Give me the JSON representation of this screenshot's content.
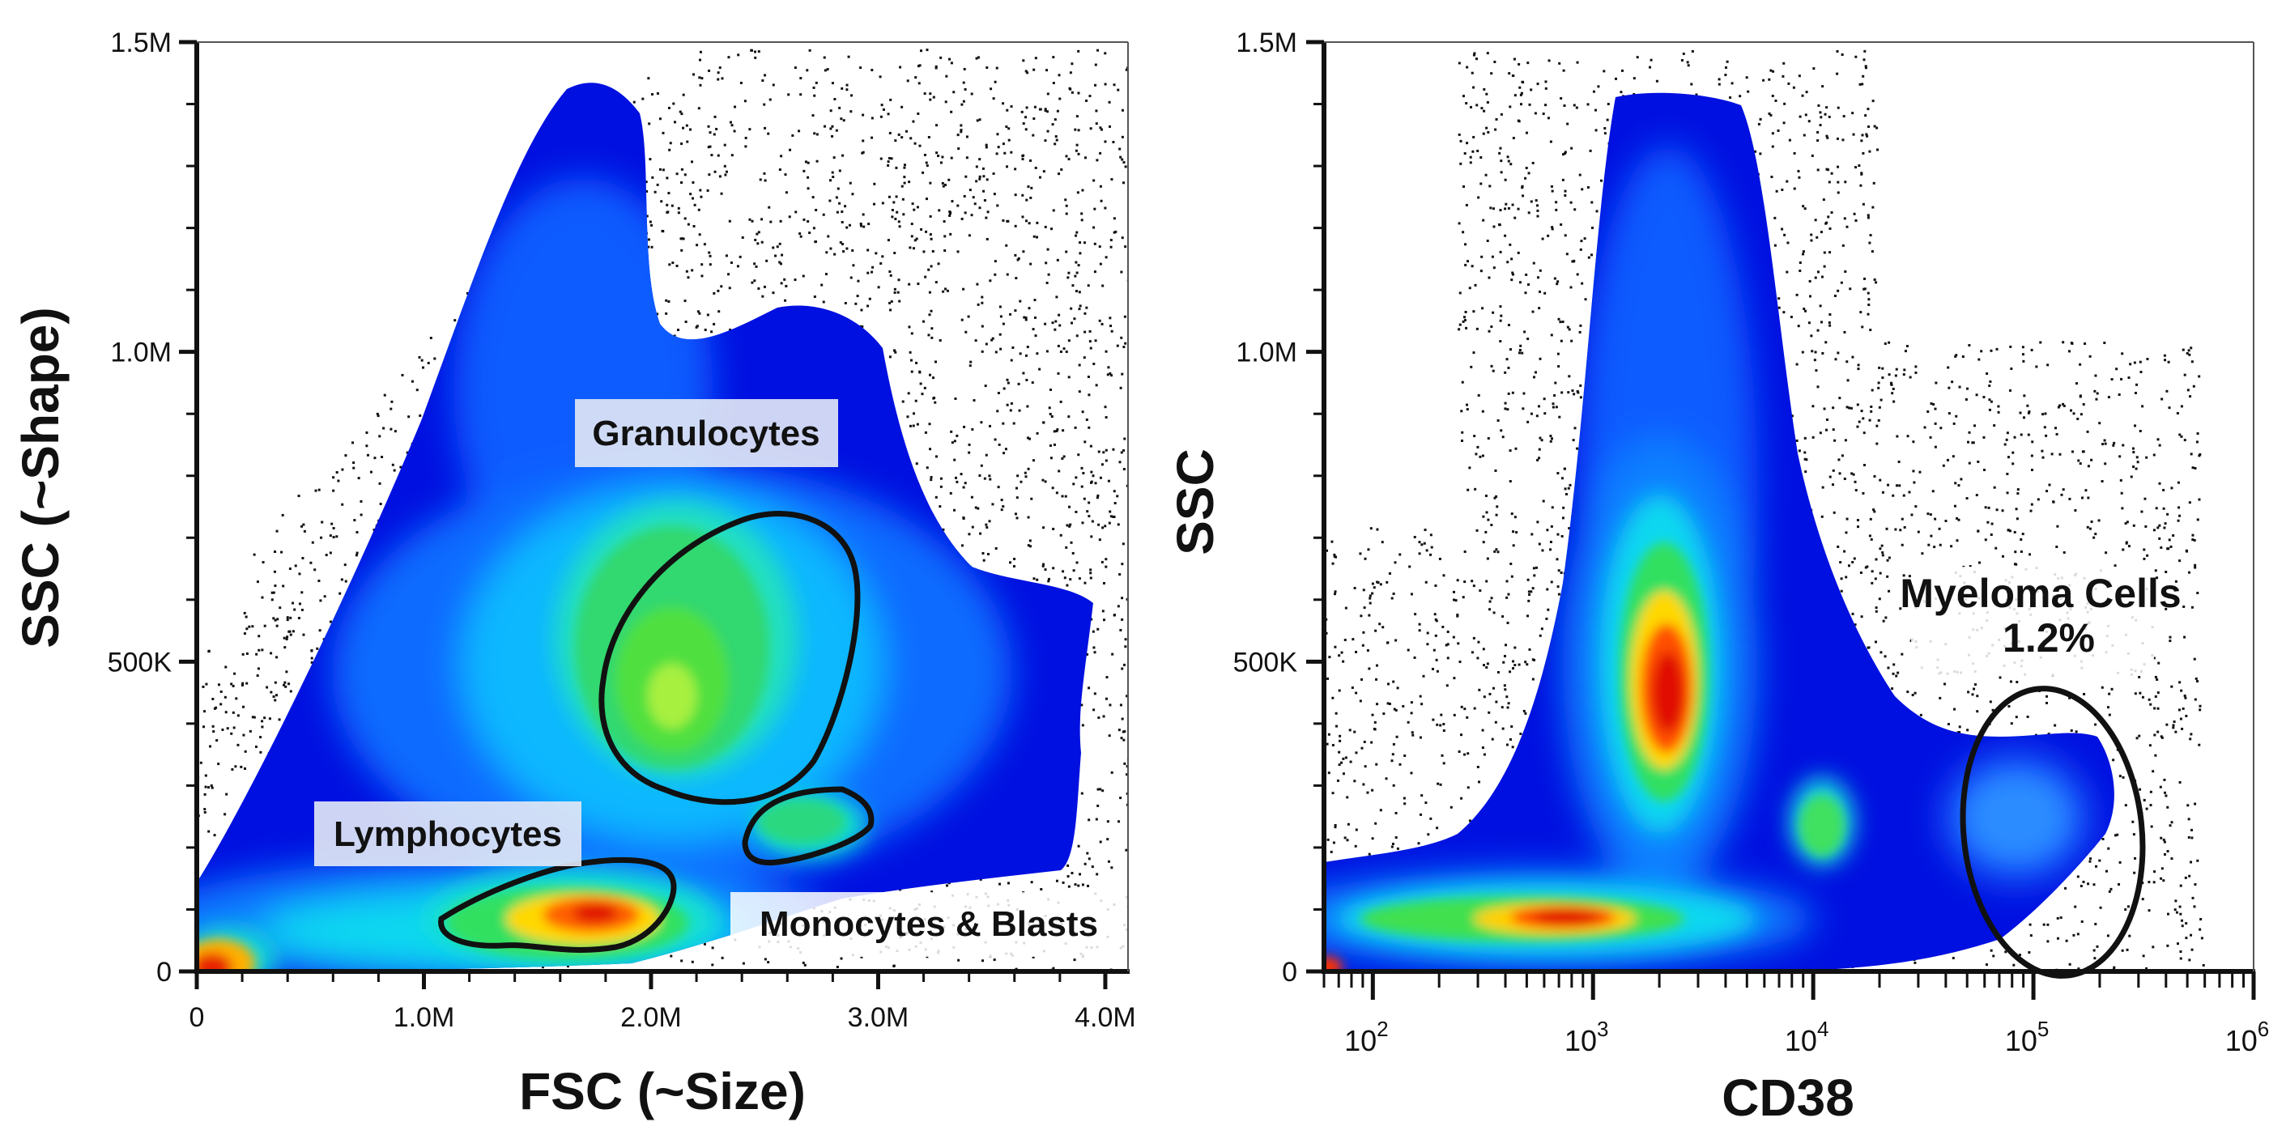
{
  "chart_data": [
    {
      "type": "scatter",
      "subtype": "density-pseudocolor",
      "xlabel": "FSC (~Size)",
      "ylabel": "SSC (~Shape)",
      "xlim": [
        0,
        4100000
      ],
      "ylim": [
        0,
        1500000
      ],
      "x_ticks": [
        {
          "value": 0,
          "label": "0"
        },
        {
          "value": 1000000,
          "label": "1.0M"
        },
        {
          "value": 2000000,
          "label": "2.0M"
        },
        {
          "value": 3000000,
          "label": "3.0M"
        },
        {
          "value": 4000000,
          "label": "4.0M"
        }
      ],
      "y_ticks": [
        {
          "value": 0,
          "label": "0"
        },
        {
          "value": 500000,
          "label": "500K"
        },
        {
          "value": 1000000,
          "label": "1.0M"
        },
        {
          "value": 1500000,
          "label": "1.5M"
        }
      ],
      "populations": [
        {
          "name": "Granulocytes",
          "center": [
            2050000,
            440000
          ],
          "peak_density": "high"
        },
        {
          "name": "Lymphocytes",
          "center": [
            1650000,
            95000
          ],
          "peak_density": "very high"
        },
        {
          "name": "Monocytes & Blasts",
          "center": [
            2500000,
            240000
          ],
          "peak_density": "medium"
        }
      ],
      "annotations": [
        "Granulocytes",
        "Lymphocytes",
        "Monocytes & Blasts"
      ],
      "colormap": [
        "#0000d8",
        "#0070ff",
        "#00e8ff",
        "#00e040",
        "#ffe000",
        "#ff4000",
        "#e00000"
      ],
      "grid": false
    },
    {
      "type": "scatter",
      "subtype": "density-pseudocolor",
      "xlabel": "CD38",
      "ylabel": "SSC",
      "x_scale": "log",
      "xlim": [
        60,
        1000000
      ],
      "ylim": [
        0,
        1500000
      ],
      "x_ticks": [
        {
          "value": 100,
          "base": "10",
          "exp": "2"
        },
        {
          "value": 1000,
          "base": "10",
          "exp": "3"
        },
        {
          "value": 10000,
          "base": "10",
          "exp": "4"
        },
        {
          "value": 100000,
          "base": "10",
          "exp": "5"
        },
        {
          "value": 1000000,
          "base": "10",
          "exp": "6"
        }
      ],
      "y_ticks": [
        {
          "value": 0,
          "label": "0"
        },
        {
          "value": 500000,
          "label": "500K"
        },
        {
          "value": 1000000,
          "label": "1.0M"
        },
        {
          "value": 1500000,
          "label": "1.5M"
        }
      ],
      "populations": [
        {
          "name": "Myeloma Cells",
          "center": [
            120000,
            250000
          ],
          "percent": "1.2%"
        }
      ],
      "annotations": [
        "Myeloma Cells",
        "1.2%"
      ],
      "colormap": [
        "#0000d8",
        "#0070ff",
        "#00e8ff",
        "#00e040",
        "#ffe000",
        "#ff4000",
        "#e00000"
      ],
      "grid": false
    }
  ]
}
